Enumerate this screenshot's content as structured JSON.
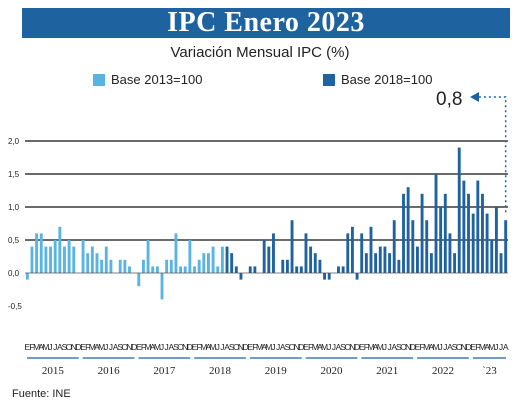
{
  "title": "IPC Enero 2023",
  "subtitle": "Variación Mensual IPC (%)",
  "annotation": "0,8",
  "source": "Fuente: INE",
  "colors": {
    "title_bg": "#1f62a0",
    "base2013": "#5ab4e3",
    "base2018": "#1f62a0",
    "grid": "#111111"
  },
  "chart_data": {
    "type": "bar",
    "title": "Variación Mensual IPC (%)",
    "ylim": [
      -0.5,
      2.0
    ],
    "yticks": [
      "-0,5",
      "0,0",
      "0,5",
      "1,0",
      "1,5",
      "2,0"
    ],
    "month_letters": "EFMAMJJASOND",
    "years": [
      "2015",
      "2016",
      "2017",
      "2018",
      "2019",
      "2020",
      "2021",
      "2022",
      "`23"
    ],
    "series": [
      {
        "name": "Base 2013=100",
        "color": "#5ab4e3",
        "values": [
          -0.1,
          0.4,
          0.6,
          0.6,
          0.4,
          0.4,
          0.5,
          0.7,
          0.4,
          0.5,
          0.4,
          0.0,
          0.5,
          0.3,
          0.4,
          0.3,
          0.2,
          0.4,
          0.2,
          0.0,
          0.2,
          0.2,
          0.1,
          0.0,
          -0.2,
          0.2,
          0.5,
          0.1,
          0.1,
          -0.4,
          0.2,
          0.2,
          0.6,
          0.1,
          0.1,
          0.5,
          0.1,
          0.2,
          0.3,
          0.3,
          0.4,
          0.1,
          0.4
        ]
      },
      {
        "name": "Base 2018=100",
        "color": "#1f62a0",
        "values": [
          0.4,
          0.3,
          0.1,
          -0.1,
          0.0,
          0.1,
          0.1,
          0.0,
          0.5,
          0.4,
          0.6,
          0.0,
          0.2,
          0.2,
          0.8,
          0.1,
          0.1,
          0.6,
          0.4,
          0.3,
          0.2,
          -0.1,
          -0.1,
          0.0,
          0.1,
          0.1,
          0.6,
          0.7,
          -0.1,
          0.6,
          0.3,
          0.7,
          0.3,
          0.4,
          0.4,
          0.3,
          0.8,
          0.2,
          1.2,
          1.3,
          0.8,
          0.4,
          1.2,
          0.8,
          0.3,
          1.5,
          1.0,
          1.2,
          0.6,
          0.3,
          1.9,
          1.4,
          1.2,
          0.9,
          1.4,
          1.2,
          0.9,
          0.5,
          1.0,
          0.3,
          0.8
        ]
      }
    ]
  }
}
